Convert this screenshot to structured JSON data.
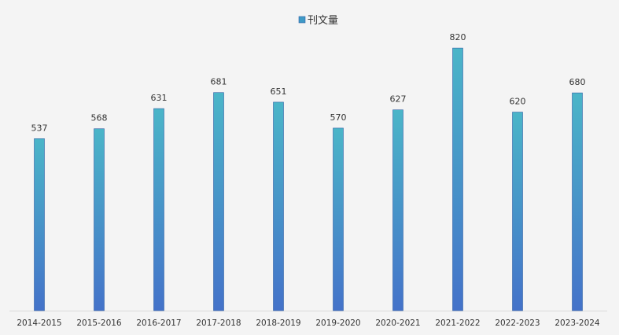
{
  "chart_data": {
    "type": "bar",
    "title": "",
    "xlabel": "",
    "ylabel": "",
    "legend": {
      "position": "top-center",
      "entries": [
        {
          "label": "刊文量",
          "color": "#3f9ac6"
        }
      ]
    },
    "categories": [
      "2014-2015",
      "2015-2016",
      "2016-2017",
      "2017-2018",
      "2018-2019",
      "2019-2020",
      "2020-2021",
      "2021-2022",
      "2022-2023",
      "2023-2024"
    ],
    "series": [
      {
        "name": "刊文量",
        "values": [
          537,
          568,
          631,
          681,
          651,
          570,
          627,
          820,
          620,
          680
        ]
      }
    ],
    "ylim": [
      0,
      835
    ],
    "grid": false,
    "colors": {
      "bar_top": "#4ab5c8",
      "bar_bottom": "#4472c9",
      "bar_stroke": "#2f5fa5",
      "axis": "#d9d9d9",
      "background": "#f4f4f4"
    }
  }
}
